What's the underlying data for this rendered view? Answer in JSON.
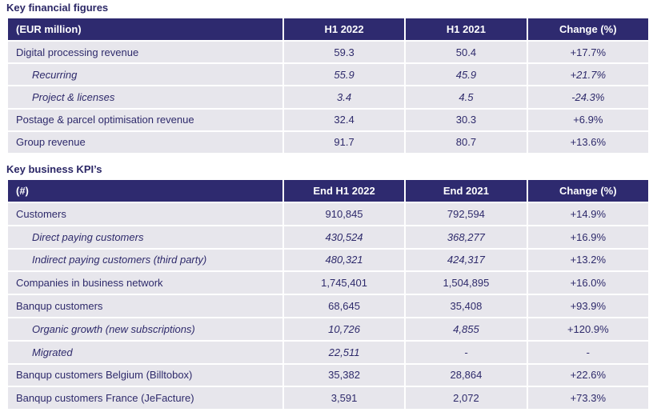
{
  "financial": {
    "title": "Key financial figures",
    "headers": [
      "(EUR million)",
      "H1 2022",
      "H1 2021",
      "Change (%)"
    ],
    "rows": [
      {
        "label": "Digital processing revenue",
        "v1": "59.3",
        "v2": "50.4",
        "chg": "+17.7%"
      },
      {
        "label": "Recurring",
        "v1": "55.9",
        "v2": "45.9",
        "chg": "+21.7%"
      },
      {
        "label": "Project & licenses",
        "v1": "3.4",
        "v2": "4.5",
        "chg": "-24.3%"
      },
      {
        "label": "Postage & parcel optimisation revenue",
        "v1": "32.4",
        "v2": "30.3",
        "chg": "+6.9%"
      },
      {
        "label": "Group revenue",
        "v1": "91.7",
        "v2": "80.7",
        "chg": "+13.6%"
      }
    ]
  },
  "kpis": {
    "title": "Key business KPI’s",
    "headers": [
      "(#)",
      "End H1 2022",
      "End 2021",
      "Change (%)"
    ],
    "rows": [
      {
        "label": "Customers",
        "v1": "910,845",
        "v2": "792,594",
        "chg": "+14.9%"
      },
      {
        "label": "Direct paying customers",
        "v1": "430,524",
        "v2": "368,277",
        "chg": "+16.9%"
      },
      {
        "label": "Indirect paying customers (third party)",
        "v1": "480,321",
        "v2": "424,317",
        "chg": "+13.2%"
      },
      {
        "label": "Companies in business network",
        "v1": "1,745,401",
        "v2": "1,504,895",
        "chg": "+16.0%"
      },
      {
        "label": "Banqup customers",
        "v1": "68,645",
        "v2": "35,408",
        "chg": "+93.9%"
      },
      {
        "label": "Organic growth (new subscriptions)",
        "v1": "10,726",
        "v2": "4,855",
        "chg": "+120.9%"
      },
      {
        "label": "Migrated",
        "v1": "22,511",
        "v2": "-",
        "chg": "-"
      },
      {
        "label": "Banqup customers Belgium (Billtobox)",
        "v1": "35,382",
        "v2": "28,864",
        "chg": "+22.6%"
      },
      {
        "label": "Banqup customers France (JeFacture)",
        "v1": "3,591",
        "v2": "2,072",
        "chg": "+73.3%"
      }
    ]
  }
}
